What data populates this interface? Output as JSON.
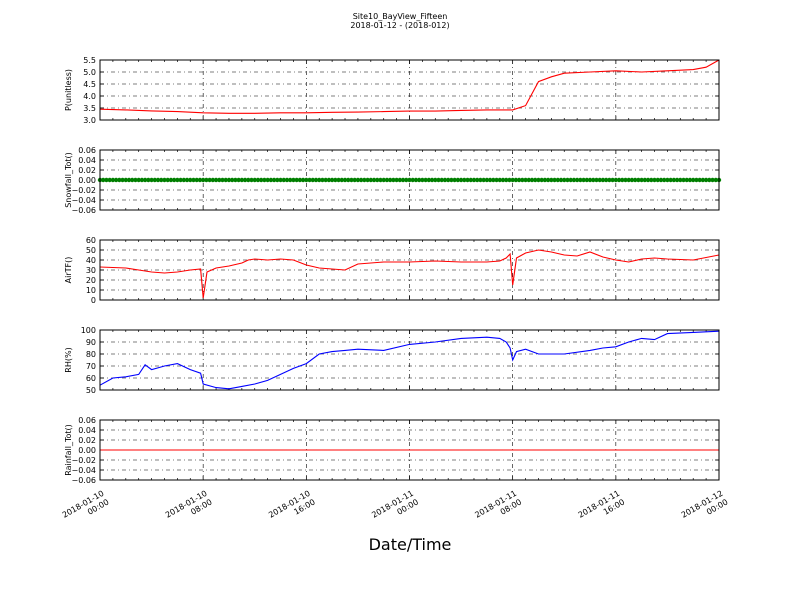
{
  "title": "Site10_BayView_Fifteen",
  "subtitle": "2018-01-12 - (2018-012)",
  "xlabel": "Date/Time",
  "x_ticks": [
    "2018-01-10\n00:00",
    "2018-01-10\n08:00",
    "2018-01-10\n16:00",
    "2018-01-11\n00:00",
    "2018-01-11\n08:00",
    "2018-01-11\n16:00",
    "2018-01-12\n00:00"
  ],
  "chart_data": [
    {
      "type": "line",
      "ylabel": "P(unitless)",
      "color": "#ff0000",
      "ylim": [
        3.0,
        5.5
      ],
      "yticks": [
        "3.0",
        "3.5",
        "4.0",
        "4.5",
        "5.0",
        "5.5"
      ],
      "grid": true,
      "x_hours": [
        0,
        2,
        4,
        6,
        8,
        10,
        12,
        14,
        16,
        18,
        20,
        22,
        24,
        26,
        28,
        30,
        32,
        33,
        34,
        35,
        36,
        38,
        40,
        42,
        44,
        46,
        47,
        48
      ],
      "values": [
        3.45,
        3.42,
        3.38,
        3.35,
        3.3,
        3.28,
        3.28,
        3.3,
        3.3,
        3.32,
        3.33,
        3.35,
        3.37,
        3.37,
        3.4,
        3.42,
        3.42,
        3.6,
        4.6,
        4.8,
        4.95,
        5.0,
        5.05,
        5.0,
        5.05,
        5.1,
        5.2,
        5.5
      ]
    },
    {
      "type": "scatter",
      "ylabel": "Snowfall_Tot()",
      "color": "#007f00",
      "ylim": [
        -0.06,
        0.06
      ],
      "yticks": [
        "−0.06",
        "−0.04",
        "−0.02",
        "0.00",
        "0.02",
        "0.04",
        "0.06"
      ],
      "grid": true,
      "x_hours": [
        0,
        48
      ],
      "values": [
        0.0,
        0.0
      ]
    },
    {
      "type": "line",
      "ylabel": "AirTF()",
      "color": "#ff0000",
      "ylim": [
        0,
        60
      ],
      "yticks": [
        "0",
        "10",
        "20",
        "30",
        "40",
        "50",
        "60"
      ],
      "grid": true,
      "x_hours": [
        0,
        2,
        3,
        4,
        5,
        6,
        7,
        7.8,
        8,
        8.3,
        9,
        10,
        11,
        11.5,
        12,
        13,
        14,
        15,
        16,
        17,
        18,
        19,
        20,
        22,
        24,
        26,
        28,
        30,
        31,
        31.5,
        31.8,
        32,
        32.3,
        33,
        34,
        35,
        36,
        37,
        38,
        39,
        40,
        41,
        42,
        43,
        44,
        46,
        48
      ],
      "values": [
        33,
        32,
        30,
        28,
        27,
        28,
        30,
        31,
        2,
        28,
        32,
        34,
        37,
        40,
        41,
        40,
        41,
        40,
        35,
        32,
        31,
        30,
        36,
        38,
        38,
        39,
        38,
        38,
        39,
        42,
        46,
        15,
        42,
        47,
        50,
        48,
        45,
        44,
        48,
        43,
        40,
        38,
        41,
        42,
        41,
        40,
        45
      ]
    },
    {
      "type": "line",
      "ylabel": "RH(%)",
      "color": "#0000ff",
      "ylim": [
        50,
        100
      ],
      "yticks": [
        "50",
        "60",
        "70",
        "80",
        "90",
        "100"
      ],
      "grid": true,
      "x_hours": [
        0,
        1,
        2,
        3,
        3.5,
        4,
        5,
        6,
        7,
        7.8,
        8,
        9,
        10,
        11,
        12,
        13,
        14,
        15,
        16,
        17,
        18,
        19,
        20,
        22,
        24,
        26,
        28,
        30,
        31,
        31.5,
        31.8,
        32,
        32.3,
        33,
        34,
        36,
        38,
        39,
        40,
        41,
        42,
        43,
        44,
        46,
        48
      ],
      "values": [
        54,
        60,
        61,
        63,
        71,
        67,
        70,
        72,
        67,
        64,
        55,
        52,
        51,
        53,
        55,
        58,
        63,
        68,
        72,
        80,
        82,
        83,
        84,
        83,
        88,
        90,
        93,
        94,
        93,
        90,
        85,
        75,
        82,
        84,
        80,
        80,
        83,
        85,
        86,
        90,
        93,
        92,
        97,
        98,
        99
      ]
    },
    {
      "type": "line",
      "ylabel": "Rainfall_Tot()",
      "color": "#ff0000",
      "ylim": [
        -0.06,
        0.06
      ],
      "yticks": [
        "−0.06",
        "−0.04",
        "−0.02",
        "0.00",
        "0.02",
        "0.04",
        "0.06"
      ],
      "grid": true,
      "x_hours": [
        0,
        48
      ],
      "values": [
        0.0,
        0.0
      ]
    }
  ]
}
